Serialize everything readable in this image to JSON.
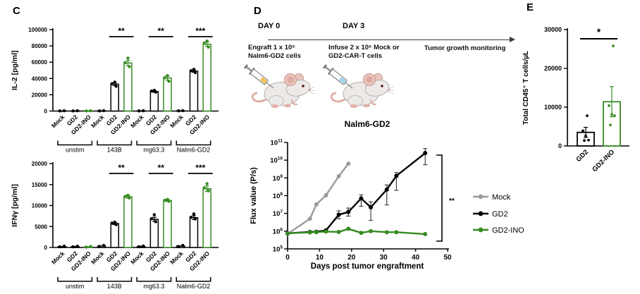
{
  "colors": {
    "green": "#378b21",
    "gray": "#9b9b9b",
    "black": "#000000",
    "syringe_yellow": "#eec455",
    "syringe_blue": "#9ed4ec"
  },
  "panels": {
    "c": {
      "label": "C"
    },
    "d": {
      "label": "D",
      "timeline": {
        "events": [
          {
            "day": "DAY 0",
            "lines": [
              "Engraft 1 x 10⁶",
              "Nalm6-GD2 cells"
            ],
            "syringe": "syringe_yellow"
          },
          {
            "day": "DAY 3",
            "lines": [
              "Infuse 2 x 10⁶ Mock or",
              "GD2-CAR-T cells"
            ],
            "syringe": "syringe_blue"
          }
        ],
        "end_label": "Tumor growth monitoring"
      }
    },
    "e": {
      "label": "E"
    }
  },
  "chart_data": [
    {
      "id": "il2",
      "type": "bar",
      "ylabel": "IL-2 [pg/ml]",
      "ylim": [
        0,
        100000
      ],
      "ytick_step": 20000,
      "bar_labels": [
        "Mock",
        "GD2",
        "GD2-INO"
      ],
      "bar_colors": [
        "black",
        "black",
        "green"
      ],
      "group_brackets": true,
      "groups": [
        {
          "name": "unstim",
          "values": [
            250,
            250,
            250
          ],
          "err": [
            0,
            0,
            0
          ],
          "dots": [
            [
              150,
              350
            ],
            [
              150,
              350
            ],
            [
              150,
              350
            ]
          ],
          "sig": null
        },
        {
          "name": "143B",
          "values": [
            350,
            33000,
            59000
          ],
          "err": [
            0,
            1800,
            3200
          ],
          "dots": [
            [
              200,
              450
            ],
            [
              30500,
              33500,
              35500
            ],
            [
              54500,
              59500,
              65000
            ]
          ],
          "sig": "**"
        },
        {
          "name": "mg63.3",
          "values": [
            300,
            24000,
            40500
          ],
          "err": [
            0,
            900,
            2600
          ],
          "dots": [
            [
              200,
              400
            ],
            [
              23200,
              24500,
              25500
            ],
            [
              36500,
              41000,
              43500
            ]
          ],
          "sig": "**"
        },
        {
          "name": "Nalm6-GD2",
          "values": [
            400,
            49000,
            82000
          ],
          "err": [
            0,
            1300,
            2600
          ],
          "dots": [
            [
              250,
              500
            ],
            [
              47200,
              49500,
              51200
            ],
            [
              78500,
              83500,
              86000
            ]
          ],
          "sig": "***"
        }
      ]
    },
    {
      "id": "ifng",
      "type": "bar",
      "ylabel": "IFNγ [pg/ml]",
      "ylim": [
        0,
        20000
      ],
      "ytick_step": 5000,
      "bar_labels": [
        "Mock",
        "GD2",
        "GD2-INO"
      ],
      "bar_colors": [
        "black",
        "black",
        "green"
      ],
      "group_brackets": true,
      "groups": [
        {
          "name": "unstim",
          "values": [
            200,
            200,
            150
          ],
          "err": [
            0,
            0,
            0
          ],
          "dots": [
            [
              150,
              300
            ],
            [
              150,
              300
            ],
            [
              100,
              250
            ]
          ],
          "sig": null
        },
        {
          "name": "143B",
          "values": [
            350,
            5700,
            12100
          ],
          "err": [
            0,
            250,
            350
          ],
          "dots": [
            [
              250,
              500
            ],
            [
              5450,
              5800,
              6050
            ],
            [
              11800,
              12150,
              12450
            ]
          ],
          "sig": "**"
        },
        {
          "name": "mg63.3",
          "values": [
            250,
            6700,
            11200
          ],
          "err": [
            0,
            500,
            250
          ],
          "dots": [
            [
              180,
              350
            ],
            [
              6150,
              6850,
              7800
            ],
            [
              11000,
              11250,
              11450
            ]
          ],
          "sig": "**"
        },
        {
          "name": "Nalm6-GD2",
          "values": [
            350,
            7100,
            14000
          ],
          "err": [
            0,
            450,
            650
          ],
          "dots": [
            [
              250,
              500
            ],
            [
              6800,
              7200,
              8000
            ],
            [
              13500,
              14200,
              15200
            ]
          ],
          "sig": "***"
        }
      ]
    },
    {
      "id": "flux",
      "type": "line",
      "title": "Nalm6-GD2",
      "xlabel": "Days post tumor engraftment",
      "ylabel": "Flux value (P/s)",
      "xlim": [
        0,
        50
      ],
      "xticks": [
        0,
        10,
        20,
        30,
        40,
        50
      ],
      "ylog_exponents": [
        5,
        11
      ],
      "significance": "**",
      "legend_position": "right",
      "series": [
        {
          "name": "Mock",
          "color": "gray",
          "x": [
            0,
            7,
            9,
            12,
            16,
            19
          ],
          "y": [
            700000,
            5000000,
            32000000,
            105000000,
            1250000000,
            6300000000
          ]
        },
        {
          "name": "GD2",
          "color": "black",
          "x": [
            0,
            7,
            9,
            12,
            16,
            19,
            23,
            26,
            31,
            34,
            43
          ],
          "y": [
            750000,
            900000,
            920000,
            1100000,
            8500000,
            12000000,
            70000000,
            22000000,
            220000000,
            1300000000,
            25000000000
          ],
          "err_lo": [
            750000,
            900000,
            920000,
            1100000,
            5000000,
            7000000,
            25000000,
            4000000,
            30000000,
            200000000,
            5500000000
          ],
          "err_hi": [
            750000,
            900000,
            920000,
            1100000,
            14000000,
            20000000,
            110000000,
            45000000,
            400000000,
            2000000000,
            45000000000
          ]
        },
        {
          "name": "GD2-INO",
          "color": "green",
          "x": [
            0,
            7,
            9,
            12,
            16,
            19,
            23,
            26,
            31,
            34,
            43
          ],
          "y": [
            750000,
            850000,
            870000,
            950000,
            900000,
            1350000,
            800000,
            1000000,
            870000,
            870000,
            680000
          ]
        }
      ]
    },
    {
      "id": "cd45",
      "type": "bar",
      "ylabel": "Total CD45⁺ T cells/µL",
      "ylim": [
        0,
        30000
      ],
      "ytick_step": 10000,
      "bar_labels": null,
      "bar_colors": [
        "black",
        "green"
      ],
      "group_brackets": false,
      "sig": "*",
      "groups": [
        {
          "name": "GD2",
          "values": [
            3500
          ],
          "err": [
            1300
          ],
          "dots": [
            [
              7800,
              3900,
              2600,
              1500,
              1400
            ]
          ],
          "color": "black"
        },
        {
          "name": "GD2-INO",
          "values": [
            11400
          ],
          "err": [
            3900
          ],
          "dots": [
            [
              25800,
              10400,
              8100,
              7800,
              5400
            ]
          ],
          "color": "green"
        }
      ]
    }
  ]
}
